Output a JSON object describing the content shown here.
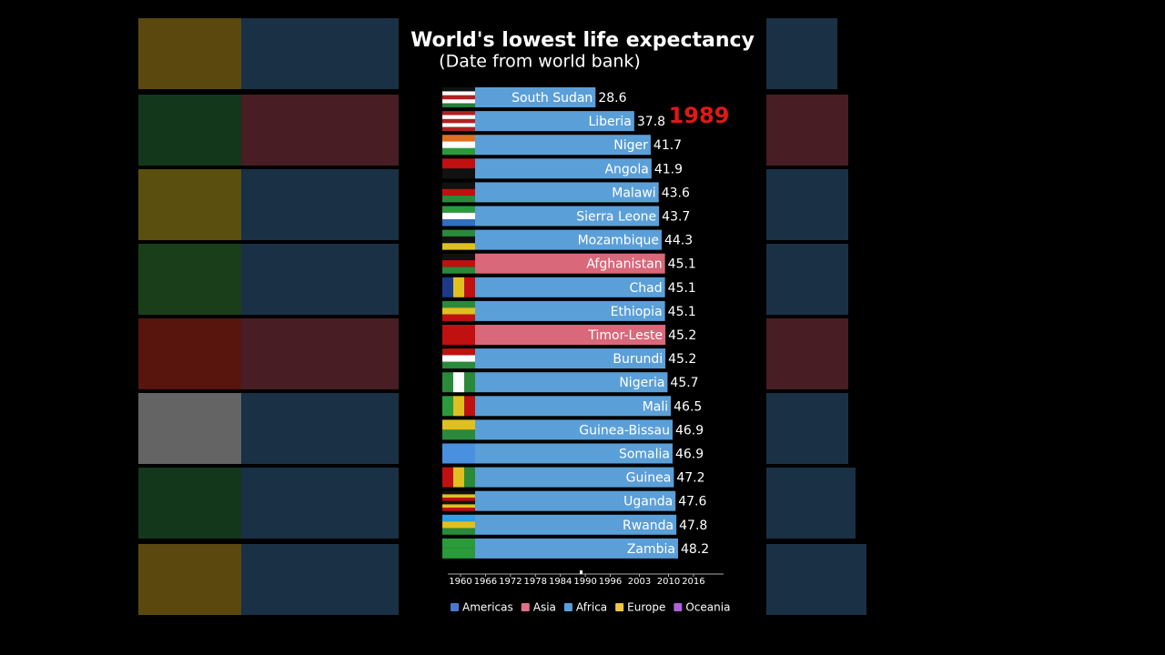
{
  "chart_data": {
    "type": "bar",
    "title": "World's lowest life expectancy",
    "subtitle": "(Date from world bank)",
    "year": 1989,
    "categories": [
      "South Sudan",
      "Liberia",
      "Niger",
      "Angola",
      "Malawi",
      "Sierra Leone",
      "Mozambique",
      "Afghanistan",
      "Chad",
      "Ethiopia",
      "Timor-Leste",
      "Burundi",
      "Nigeria",
      "Mali",
      "Guinea-Bissau",
      "Somalia",
      "Guinea",
      "Uganda",
      "Rwanda",
      "Zambia"
    ],
    "values": [
      28.6,
      37.8,
      41.7,
      41.9,
      43.6,
      43.7,
      44.3,
      45.1,
      45.1,
      45.1,
      45.2,
      45.2,
      45.7,
      46.5,
      46.9,
      46.9,
      47.2,
      47.6,
      47.8,
      48.2
    ],
    "colors": [
      "#5b9fd8",
      "#5b9fd8",
      "#5b9fd8",
      "#5b9fd8",
      "#5b9fd8",
      "#5b9fd8",
      "#5b9fd8",
      "#d8687a",
      "#5b9fd8",
      "#5b9fd8",
      "#d8687a",
      "#5b9fd8",
      "#5b9fd8",
      "#5b9fd8",
      "#5b9fd8",
      "#5b9fd8",
      "#5b9fd8",
      "#5b9fd8",
      "#5b9fd8",
      "#5b9fd8"
    ],
    "timeline_ticks": [
      1960,
      1966,
      1972,
      1978,
      1984,
      1990,
      1996,
      2003,
      2010,
      2016
    ],
    "legend": [
      {
        "name": "Americas",
        "color": "#4a78d0"
      },
      {
        "name": "Asia",
        "color": "#e0708a"
      },
      {
        "name": "Africa",
        "color": "#5b9fd8"
      },
      {
        "name": "Europe",
        "color": "#f0c840"
      },
      {
        "name": "Oceania",
        "color": "#b060d8"
      }
    ]
  }
}
